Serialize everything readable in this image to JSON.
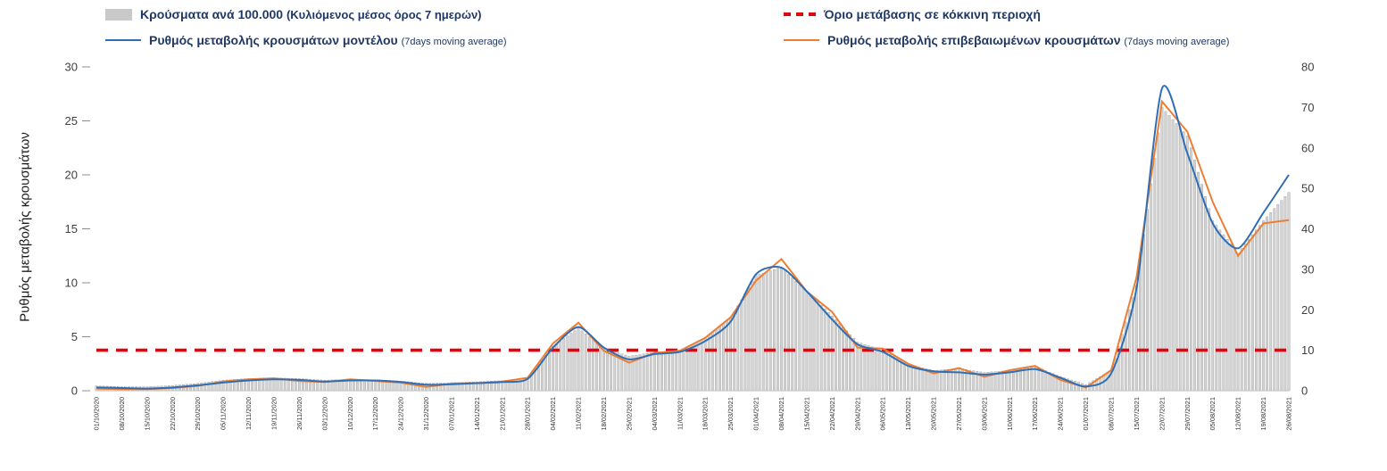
{
  "legend": {
    "items": [
      {
        "id": "cases-per-100k",
        "swatch": "bar",
        "color": "#c9c9c9",
        "label": "Κρούσματα ανά 100.000",
        "sub": "(Κυλιόμενος μέσος όρος 7 ημερών)"
      },
      {
        "id": "red-threshold",
        "swatch": "dashed",
        "color": "#e8000b",
        "label": "Όριο μετάβασης σε κόκκινη περιοχή",
        "sub": ""
      },
      {
        "id": "model-rate",
        "swatch": "line",
        "color": "#2f6eb5",
        "label": "Ρυθμός μεταβολής κρουσμάτων μοντέλου",
        "sub": "(7days moving average)"
      },
      {
        "id": "confirmed-rate",
        "swatch": "line",
        "color": "#ed7d31",
        "label": "Ρυθμός μεταβολής επιβεβαιωμένων κρουσμάτων",
        "sub": "(7days moving average)"
      }
    ]
  },
  "chart_data": {
    "type": "combo-bar-line",
    "title": "",
    "ylabel_left": "Ρυθμός μεταβολής κρουσμάτων",
    "left_axis": {
      "min": 0,
      "max": 30,
      "ticks": [
        0,
        5,
        10,
        15,
        20,
        25,
        30
      ]
    },
    "right_axis": {
      "min": 0,
      "max": 80,
      "ticks": [
        0,
        10,
        20,
        30,
        40,
        50,
        60,
        70,
        80
      ]
    },
    "threshold": {
      "label": "Όριο μετάβασης σε κόκκινη περιοχή",
      "value_left_axis": 3.75,
      "value_right_axis": 10,
      "color": "#e8000b",
      "style": "dashed"
    },
    "grid": false,
    "legend_position": "top",
    "note": "values sampled at the weekly x-axis labels; bars are daily values interpolated between weekly samples",
    "categories": [
      "01/10/2020",
      "08/10/2020",
      "15/10/2020",
      "22/10/2020",
      "29/10/2020",
      "05/11/2020",
      "12/11/2020",
      "19/11/2020",
      "26/11/2020",
      "03/12/2020",
      "10/12/2020",
      "17/12/2020",
      "24/12/2020",
      "31/12/2020",
      "07/01/2021",
      "14/01/2021",
      "21/01/2021",
      "28/01/2021",
      "04/02/2021",
      "11/02/2021",
      "18/02/2021",
      "25/02/2021",
      "04/03/2021",
      "11/03/2021",
      "18/03/2021",
      "25/03/2021",
      "01/04/2021",
      "08/04/2021",
      "15/04/2021",
      "22/04/2021",
      "29/04/2021",
      "06/05/2021",
      "13/05/2021",
      "20/05/2021",
      "27/05/2021",
      "03/06/2021",
      "10/06/2021",
      "17/06/2021",
      "24/06/2021",
      "01/07/2021",
      "08/07/2021",
      "15/07/2021",
      "22/07/2021",
      "29/07/2021",
      "05/08/2021",
      "12/08/2021",
      "19/08/2021",
      "26/08/2021"
    ],
    "series": [
      {
        "name": "Κρούσματα ανά 100.000 (Κυλιόμενος μέσος όρος 7 ημερών)",
        "type": "bar",
        "axis": "right",
        "color": "#d4d4d4",
        "values": [
          1.2,
          1.0,
          1.0,
          1.3,
          1.8,
          2.6,
          3.0,
          3.2,
          3.0,
          2.6,
          2.8,
          2.7,
          2.4,
          1.8,
          2.0,
          2.2,
          2.5,
          3.2,
          11.0,
          15.5,
          10.5,
          8.5,
          9.5,
          10.0,
          13.0,
          18.0,
          28.5,
          30.5,
          24.5,
          18.5,
          12.0,
          10.0,
          6.5,
          5.0,
          5.5,
          4.5,
          5.0,
          6.0,
          3.5,
          1.5,
          5.0,
          26.0,
          70.0,
          63.0,
          42.0,
          34.0,
          42.0,
          49.0
        ]
      },
      {
        "name": "Ρυθμός μεταβολής κρουσμάτων μοντέλου (7days moving average)",
        "type": "line",
        "axis": "left",
        "color": "#2f6eb5",
        "values": [
          0.3,
          0.25,
          0.2,
          0.3,
          0.5,
          0.75,
          0.95,
          1.05,
          1.0,
          0.85,
          0.95,
          0.95,
          0.8,
          0.55,
          0.6,
          0.7,
          0.8,
          1.1,
          4.0,
          5.9,
          4.0,
          2.9,
          3.4,
          3.6,
          4.6,
          6.4,
          10.8,
          11.4,
          9.2,
          6.6,
          4.3,
          3.6,
          2.3,
          1.8,
          1.7,
          1.5,
          1.7,
          2.0,
          1.2,
          0.4,
          1.6,
          9.5,
          28.0,
          22.0,
          15.5,
          13.2,
          16.5,
          20.0
        ]
      },
      {
        "name": "Ρυθμός μεταβολής επιβεβαιωμένων κρουσμάτων (7days moving average)",
        "type": "line",
        "axis": "left",
        "color": "#ed7d31",
        "values": [
          0.2,
          0.15,
          0.15,
          0.25,
          0.45,
          0.85,
          1.05,
          1.15,
          0.9,
          0.8,
          1.05,
          0.9,
          0.75,
          0.35,
          0.65,
          0.7,
          0.85,
          1.2,
          4.4,
          6.3,
          3.7,
          2.6,
          3.5,
          3.7,
          4.9,
          6.8,
          10.2,
          12.2,
          9.2,
          7.3,
          4.0,
          3.9,
          2.5,
          1.6,
          2.1,
          1.3,
          1.9,
          2.3,
          1.0,
          0.3,
          1.9,
          10.5,
          26.8,
          24.0,
          17.5,
          12.5,
          15.5,
          15.8
        ]
      }
    ]
  }
}
